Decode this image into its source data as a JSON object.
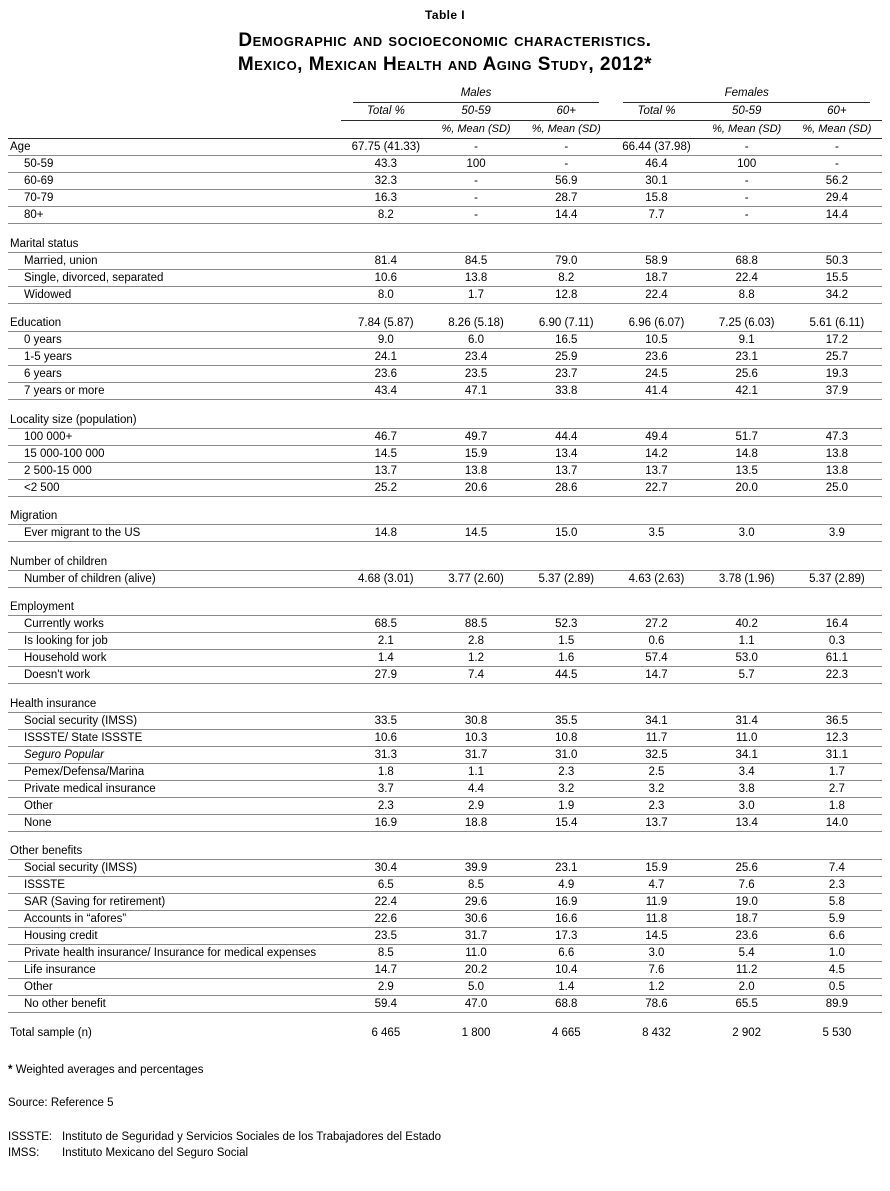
{
  "table_label": "Table I",
  "title_line1": "Demographic and socioeconomic characteristics.",
  "title_line2": "Mexico, Mexican Health and Aging Study, 2012*",
  "header": {
    "males": "Males",
    "females": "Females",
    "total": "Total %",
    "age_50_59": "50-59",
    "age_60_plus": "60+",
    "mean_sd": "%, Mean (SD)"
  },
  "rows": [
    {
      "label": "Age",
      "indent": false,
      "v": [
        "67.75 (41.33)",
        "-",
        "-",
        "66.44 (37.98)",
        "-",
        "-"
      ]
    },
    {
      "label": "50-59",
      "indent": true,
      "v": [
        "43.3",
        "100",
        "-",
        "46.4",
        "100",
        "-"
      ]
    },
    {
      "label": "60-69",
      "indent": true,
      "v": [
        "32.3",
        "-",
        "56.9",
        "30.1",
        "-",
        "56.2"
      ]
    },
    {
      "label": "70-79",
      "indent": true,
      "v": [
        "16.3",
        "-",
        "28.7",
        "15.8",
        "-",
        "29.4"
      ]
    },
    {
      "label": "80+",
      "indent": true,
      "v": [
        "8.2",
        "-",
        "14.4",
        "7.7",
        "-",
        "14.4"
      ]
    },
    {
      "spacer": true
    },
    {
      "label": "Marital status",
      "indent": false,
      "v": [
        "",
        "",
        "",
        "",
        "",
        ""
      ]
    },
    {
      "label": "Married, union",
      "indent": true,
      "v": [
        "81.4",
        "84.5",
        "79.0",
        "58.9",
        "68.8",
        "50.3"
      ]
    },
    {
      "label": "Single, divorced, separated",
      "indent": true,
      "v": [
        "10.6",
        "13.8",
        "8.2",
        "18.7",
        "22.4",
        "15.5"
      ]
    },
    {
      "label": "Widowed",
      "indent": true,
      "v": [
        "8.0",
        "1.7",
        "12.8",
        "22.4",
        "8.8",
        "34.2"
      ]
    },
    {
      "spacer": true
    },
    {
      "label": "Education",
      "indent": false,
      "v": [
        "7.84 (5.87)",
        "8.26 (5.18)",
        "6.90 (7.11)",
        "6.96 (6.07)",
        "7.25 (6.03)",
        "5.61 (6.11)"
      ]
    },
    {
      "label": "0 years",
      "indent": true,
      "v": [
        "9.0",
        "6.0",
        "16.5",
        "10.5",
        "9.1",
        "17.2"
      ]
    },
    {
      "label": "1-5 years",
      "indent": true,
      "v": [
        "24.1",
        "23.4",
        "25.9",
        "23.6",
        "23.1",
        "25.7"
      ]
    },
    {
      "label": "6 years",
      "indent": true,
      "v": [
        "23.6",
        "23.5",
        "23.7",
        "24.5",
        "25.6",
        "19.3"
      ]
    },
    {
      "label": "7 years or more",
      "indent": true,
      "v": [
        "43.4",
        "47.1",
        "33.8",
        "41.4",
        "42.1",
        "37.9"
      ]
    },
    {
      "spacer": true
    },
    {
      "label": "Locality size (population)",
      "indent": false,
      "v": [
        "",
        "",
        "",
        "",
        "",
        ""
      ]
    },
    {
      "label": "100 000+",
      "indent": true,
      "v": [
        "46.7",
        "49.7",
        "44.4",
        "49.4",
        "51.7",
        "47.3"
      ]
    },
    {
      "label": "15 000-100 000",
      "indent": true,
      "v": [
        "14.5",
        "15.9",
        "13.4",
        "14.2",
        "14.8",
        "13.8"
      ]
    },
    {
      "label": "2 500-15 000",
      "indent": true,
      "v": [
        "13.7",
        "13.8",
        "13.7",
        "13.7",
        "13.5",
        "13.8"
      ]
    },
    {
      "label": "<2 500",
      "indent": true,
      "v": [
        "25.2",
        "20.6",
        "28.6",
        "22.7",
        "20.0",
        "25.0"
      ]
    },
    {
      "spacer": true
    },
    {
      "label": "Migration",
      "indent": false,
      "v": [
        "",
        "",
        "",
        "",
        "",
        ""
      ]
    },
    {
      "label": "Ever migrant to the US",
      "indent": true,
      "v": [
        "14.8",
        "14.5",
        "15.0",
        "3.5",
        "3.0",
        "3.9"
      ]
    },
    {
      "spacer": true
    },
    {
      "label": "Number of children",
      "indent": false,
      "v": [
        "",
        "",
        "",
        "",
        "",
        ""
      ]
    },
    {
      "label": "Number of children (alive)",
      "indent": true,
      "v": [
        "4.68 (3.01)",
        "3.77 (2.60)",
        "5.37 (2.89)",
        "4.63 (2.63)",
        "3.78 (1.96)",
        "5.37 (2.89)"
      ]
    },
    {
      "spacer": true
    },
    {
      "label": "Employment",
      "indent": false,
      "v": [
        "",
        "",
        "",
        "",
        "",
        ""
      ]
    },
    {
      "label": "Currently works",
      "indent": true,
      "v": [
        "68.5",
        "88.5",
        "52.3",
        "27.2",
        "40.2",
        "16.4"
      ]
    },
    {
      "label": "Is looking for job",
      "indent": true,
      "v": [
        "2.1",
        "2.8",
        "1.5",
        "0.6",
        "1.1",
        "0.3"
      ]
    },
    {
      "label": "Household work",
      "indent": true,
      "v": [
        "1.4",
        "1.2",
        "1.6",
        "57.4",
        "53.0",
        "61.1"
      ]
    },
    {
      "label": "Doesn't work",
      "indent": true,
      "v": [
        "27.9",
        "7.4",
        "44.5",
        "14.7",
        "5.7",
        "22.3"
      ]
    },
    {
      "spacer": true
    },
    {
      "label": "Health insurance",
      "indent": false,
      "v": [
        "",
        "",
        "",
        "",
        "",
        ""
      ]
    },
    {
      "label": "Social security (IMSS)",
      "indent": true,
      "v": [
        "33.5",
        "30.8",
        "35.5",
        "34.1",
        "31.4",
        "36.5"
      ]
    },
    {
      "label": "ISSSTE/ State ISSSTE",
      "indent": true,
      "v": [
        "10.6",
        "10.3",
        "10.8",
        "11.7",
        "11.0",
        "12.3"
      ]
    },
    {
      "label": "Seguro Popular",
      "indent": true,
      "italic": true,
      "v": [
        "31.3",
        "31.7",
        "31.0",
        "32.5",
        "34.1",
        "31.1"
      ]
    },
    {
      "label": "Pemex/Defensa/Marina",
      "indent": true,
      "v": [
        "1.8",
        "1.1",
        "2.3",
        "2.5",
        "3.4",
        "1.7"
      ]
    },
    {
      "label": "Private medical insurance",
      "indent": true,
      "v": [
        "3.7",
        "4.4",
        "3.2",
        "3.2",
        "3.8",
        "2.7"
      ]
    },
    {
      "label": "Other",
      "indent": true,
      "v": [
        "2.3",
        "2.9",
        "1.9",
        "2.3",
        "3.0",
        "1.8"
      ]
    },
    {
      "label": "None",
      "indent": true,
      "v": [
        "16.9",
        "18.8",
        "15.4",
        "13.7",
        "13.4",
        "14.0"
      ]
    },
    {
      "spacer": true
    },
    {
      "label": "Other benefits",
      "indent": false,
      "v": [
        "",
        "",
        "",
        "",
        "",
        ""
      ]
    },
    {
      "label": "Social security (IMSS)",
      "indent": true,
      "v": [
        "30.4",
        "39.9",
        "23.1",
        "15.9",
        "25.6",
        "7.4"
      ]
    },
    {
      "label": "ISSSTE",
      "indent": true,
      "v": [
        "6.5",
        "8.5",
        "4.9",
        "4.7",
        "7.6",
        "2.3"
      ]
    },
    {
      "label": "SAR (Saving for retirement)",
      "indent": true,
      "v": [
        "22.4",
        "29.6",
        "16.9",
        "11.9",
        "19.0",
        "5.8"
      ]
    },
    {
      "label": "Accounts in “afores”",
      "indent": true,
      "v": [
        "22.6",
        "30.6",
        "16.6",
        "11.8",
        "18.7",
        "5.9"
      ]
    },
    {
      "label": "Housing credit",
      "indent": true,
      "v": [
        "23.5",
        "31.7",
        "17.3",
        "14.5",
        "23.6",
        "6.6"
      ]
    },
    {
      "label": "Private health insurance/ Insurance for medical expenses",
      "indent": true,
      "v": [
        "8.5",
        "11.0",
        "6.6",
        "3.0",
        "5.4",
        "1.0"
      ]
    },
    {
      "label": "Life insurance",
      "indent": true,
      "v": [
        "14.7",
        "20.2",
        "10.4",
        "7.6",
        "11.2",
        "4.5"
      ]
    },
    {
      "label": "Other",
      "indent": true,
      "v": [
        "2.9",
        "5.0",
        "1.4",
        "1.2",
        "2.0",
        "0.5"
      ]
    },
    {
      "label": "No other benefit",
      "indent": true,
      "v": [
        "59.4",
        "47.0",
        "68.8",
        "78.6",
        "65.5",
        "89.9"
      ]
    },
    {
      "spacer": true
    },
    {
      "label": "Total sample (n)",
      "indent": false,
      "noline": true,
      "v": [
        "6 465",
        "1 800",
        "4 665",
        "8 432",
        "2 902",
        "5 530"
      ]
    }
  ],
  "footnotes": {
    "weighted_marker": "*",
    "weighted_text": "Weighted averages and percentages",
    "source": "Source: Reference 5",
    "issste_label": "ISSSTE:",
    "issste_text": "Instituto de Seguridad y Servicios Sociales de los Trabajadores del Estado",
    "imss_label": "IMSS:",
    "imss_text": "Instituto Mexicano del Seguro Social"
  }
}
